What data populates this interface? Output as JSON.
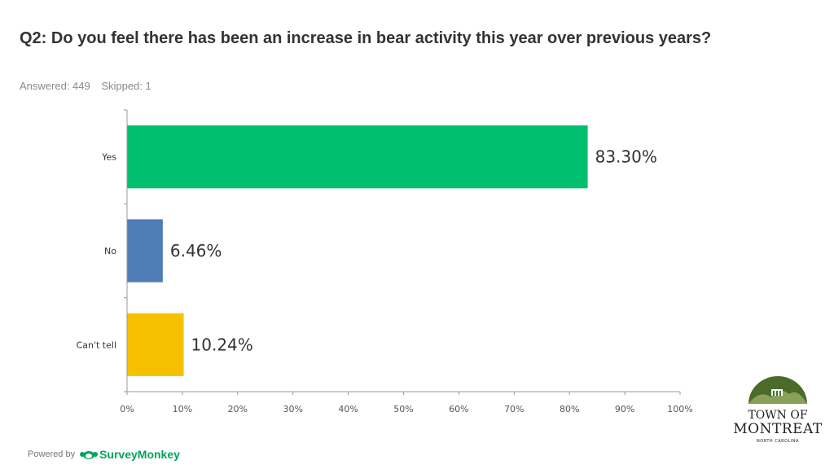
{
  "header": {
    "title": "Q2: Do you feel there has been an increase in bear activity this year over previous years?",
    "answered": "Answered: 449",
    "skipped": "Skipped: 1"
  },
  "chart_data": {
    "type": "bar",
    "orientation": "horizontal",
    "categories": [
      "Yes",
      "No",
      "Can't tell"
    ],
    "values": [
      83.3,
      6.46,
      10.24
    ],
    "value_labels": [
      "83.30%",
      "6.46%",
      "10.24%"
    ],
    "colors": [
      "#00bf6f",
      "#507cb6",
      "#f6c000"
    ],
    "xlim": [
      0,
      100
    ],
    "x_ticks": [
      "0%",
      "10%",
      "20%",
      "30%",
      "40%",
      "50%",
      "60%",
      "70%",
      "80%",
      "90%",
      "100%"
    ],
    "grid": false
  },
  "footer": {
    "powered_by": "Powered by",
    "brand": "SurveyMonkey",
    "brand_color": "#00a35b",
    "logo_icon": "survey-monkey-icon"
  },
  "logo": {
    "line1": "TOWN OF",
    "line2": "MONTREAT",
    "line3": "NORTH CAROLINA",
    "colors": [
      "#4a6b2a",
      "#8aa05a"
    ]
  }
}
